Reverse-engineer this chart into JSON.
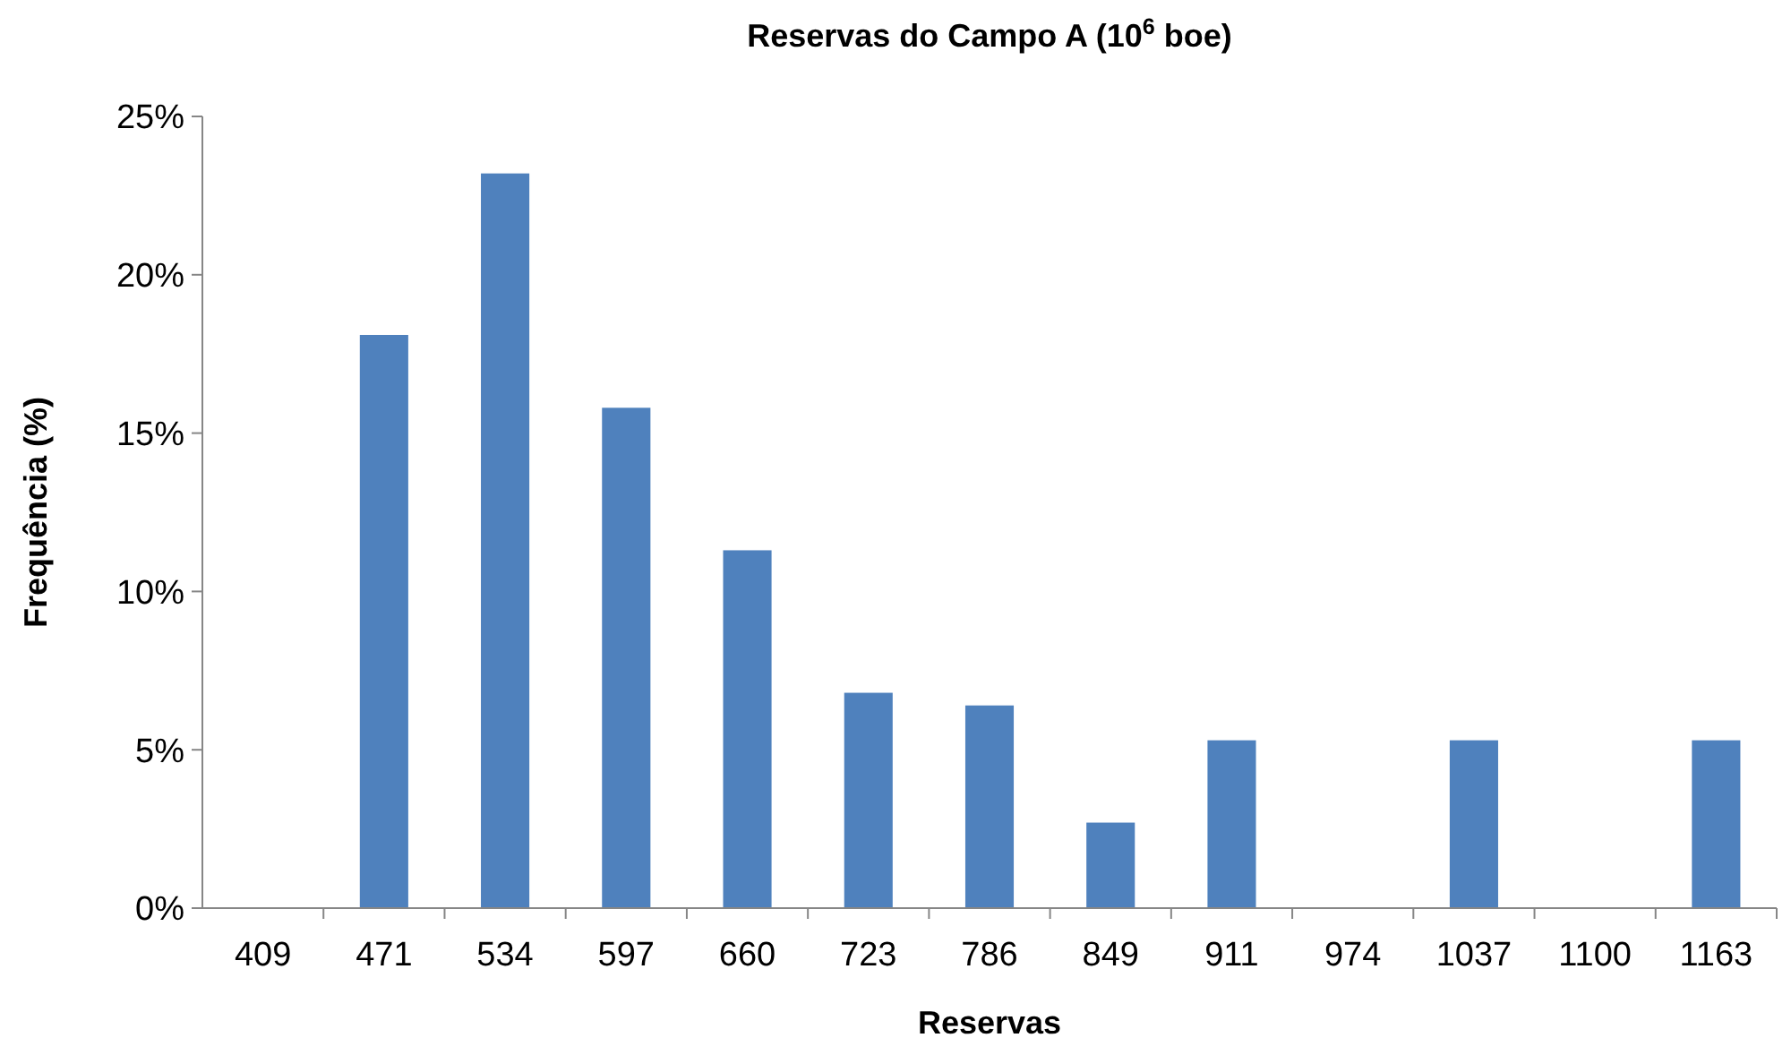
{
  "chart_data": {
    "type": "bar",
    "title": "Reservas do Campo A (10$^{6}$ boe)",
    "xlabel": "Reservas",
    "ylabel": "Frequência (%)",
    "categories": [
      "409",
      "471",
      "534",
      "597",
      "660",
      "723",
      "786",
      "849",
      "911",
      "974",
      "1037",
      "1100",
      "1163"
    ],
    "series": [
      {
        "color": "#4f81bd",
        "values": [
          0,
          18.1,
          23.2,
          15.8,
          11.3,
          6.8,
          6.4,
          2.7,
          5.3,
          0,
          5.3,
          0,
          5.3
        ]
      }
    ],
    "ylim": [
      0,
      25
    ],
    "yticks": [
      {
        "value": 0,
        "label": "0%"
      },
      {
        "value": 5,
        "label": "5%"
      },
      {
        "value": 10,
        "label": "10%"
      },
      {
        "value": 15,
        "label": "15%"
      },
      {
        "value": 20,
        "label": "20%"
      },
      {
        "value": 25,
        "label": "25%"
      }
    ],
    "grid": false
  }
}
